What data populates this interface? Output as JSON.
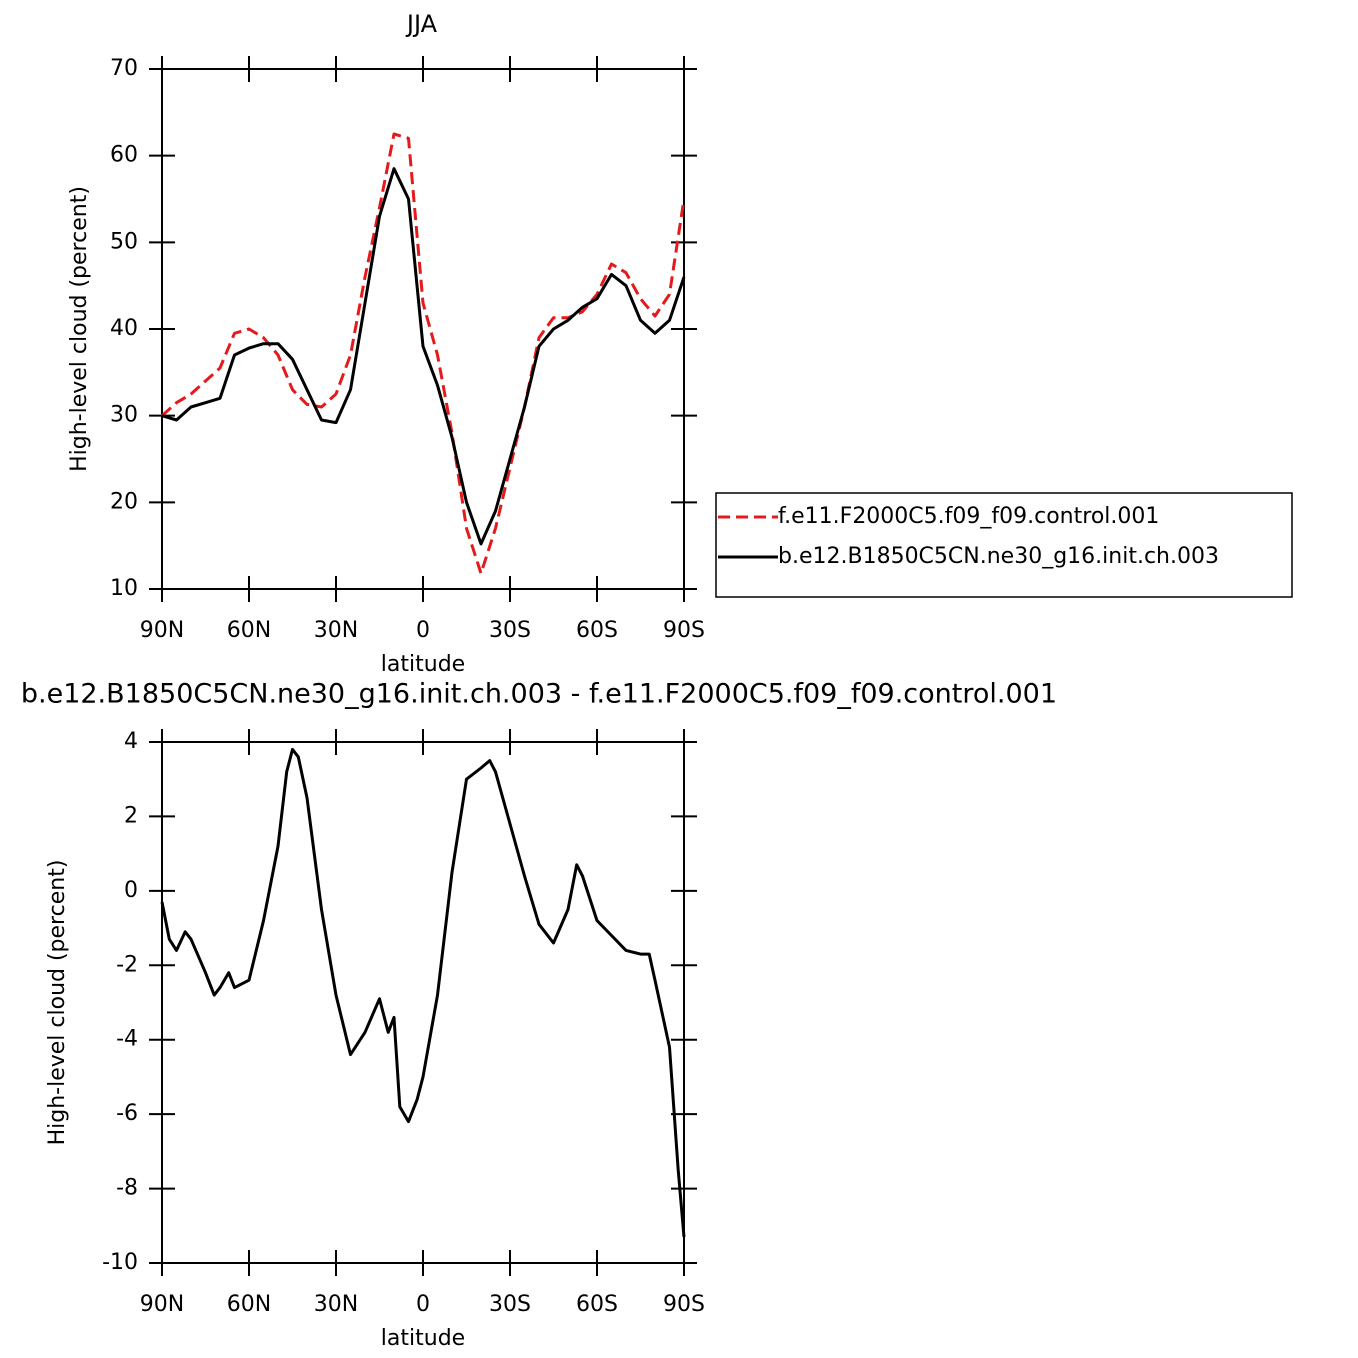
{
  "chart_data": [
    {
      "type": "line",
      "title": "JJA",
      "xlabel": "latitude",
      "ylabel": "High-level cloud (percent)",
      "x": [
        90,
        85,
        80,
        75,
        70,
        65,
        60,
        55,
        50,
        45,
        40,
        35,
        30,
        25,
        20,
        15,
        10,
        5,
        0,
        -5,
        -10,
        -15,
        -20,
        -25,
        -30,
        -35,
        -40,
        -45,
        -50,
        -55,
        -60,
        -65,
        -70,
        -75,
        -80,
        -85,
        -90
      ],
      "series": [
        {
          "name": "f.e11.F2000C5.f09_f09.control.001",
          "color": "#e41a1c",
          "linestyle": "dashed",
          "values": [
            30,
            31.5,
            32.5,
            34,
            35.5,
            39.5,
            40,
            39,
            37,
            33,
            31.3,
            31,
            32.5,
            37,
            46,
            54,
            62.5,
            62,
            43,
            37,
            28,
            17,
            11.8,
            17,
            24,
            31,
            39,
            41.3,
            41.3,
            42,
            44,
            47.5,
            46.5,
            43.5,
            41.5,
            44,
            55
          ]
        },
        {
          "name": "b.e12.B1850C5CN.ne30_g16.init.ch.003",
          "color": "#000000",
          "linestyle": "solid",
          "values": [
            30,
            29.5,
            31,
            31.5,
            32,
            37,
            37.8,
            38.3,
            38.3,
            36.5,
            33,
            29.5,
            29.2,
            33,
            43,
            53,
            58.5,
            55,
            38,
            33.5,
            27.5,
            20,
            15.2,
            19,
            25,
            31,
            38,
            40,
            41,
            42.5,
            43.5,
            46.3,
            45,
            41,
            39.5,
            41,
            46
          ]
        }
      ],
      "xlim": [
        90,
        -90
      ],
      "xticks": [
        {
          "value": 90,
          "label": "90N"
        },
        {
          "value": 60,
          "label": "60N"
        },
        {
          "value": 30,
          "label": "30N"
        },
        0,
        {
          "value": -30,
          "label": "30S"
        },
        {
          "value": -60,
          "label": "60S"
        },
        {
          "value": -90,
          "label": "90S"
        }
      ],
      "ylim": [
        10,
        70
      ],
      "yticks": [
        10,
        20,
        30,
        40,
        50,
        60,
        70
      ],
      "legend": "outside-right"
    },
    {
      "type": "line",
      "title": "b.e12.B1850C5CN.ne30_g16.init.ch.003 - f.e11.F2000C5.f09_f09.control.001",
      "xlabel": "latitude",
      "ylabel": "High-level cloud (percent)",
      "x": [
        90,
        87.5,
        85,
        82,
        80,
        75,
        72,
        70,
        67,
        65,
        60,
        55,
        50,
        47,
        45,
        43,
        40,
        35,
        30,
        25,
        20,
        15,
        12,
        10,
        8,
        5,
        2,
        0,
        -5,
        -10,
        -15,
        -20,
        -23,
        -25,
        -30,
        -35,
        -40,
        -45,
        -50,
        -53,
        -55,
        -60,
        -65,
        -70,
        -75,
        -78,
        -80,
        -85,
        -88,
        -90
      ],
      "color": "#000000",
      "values": [
        -0.3,
        -1.3,
        -1.6,
        -1.1,
        -1.3,
        -2.2,
        -2.8,
        -2.6,
        -2.2,
        -2.6,
        -2.4,
        -0.8,
        1.2,
        3.2,
        3.8,
        3.6,
        2.5,
        -0.5,
        -2.8,
        -4.4,
        -3.8,
        -2.9,
        -3.8,
        -3.4,
        -5.8,
        -6.2,
        -5.6,
        -5,
        -2.8,
        0.5,
        3,
        3.3,
        3.5,
        3.2,
        1.8,
        0.4,
        -0.9,
        -1.4,
        -0.5,
        0.7,
        0.4,
        -0.8,
        -1.2,
        -1.6,
        -1.7,
        -1.7,
        -2.4,
        -4.2,
        -7.5,
        -9.3
      ],
      "xlim": [
        90,
        -90
      ],
      "xticks": [
        {
          "value": 90,
          "label": "90N"
        },
        {
          "value": 60,
          "label": "60N"
        },
        {
          "value": 30,
          "label": "30N"
        },
        0,
        {
          "value": -30,
          "label": "30S"
        },
        {
          "value": -60,
          "label": "60S"
        },
        {
          "value": -90,
          "label": "90S"
        }
      ],
      "ylim": [
        -10,
        4
      ],
      "yticks": [
        -10,
        -8,
        -6,
        -4,
        -2,
        0,
        2,
        4
      ]
    }
  ]
}
